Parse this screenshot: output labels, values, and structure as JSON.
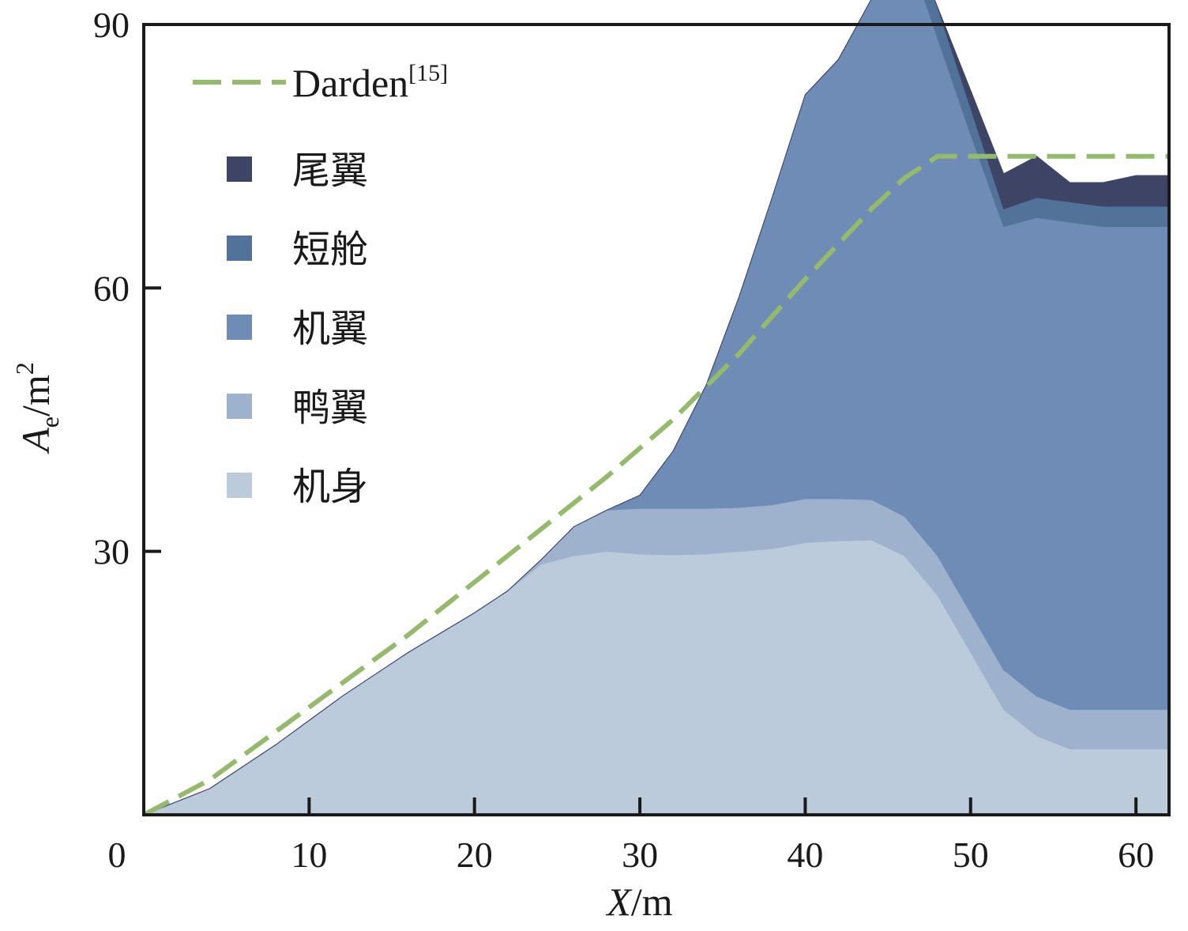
{
  "chart_data": {
    "type": "area",
    "stacked": true,
    "xlabel_var": "X",
    "xlabel_unit": "/m",
    "ylabel_var": "A",
    "ylabel_sub": "e",
    "ylabel_unit": "/m",
    "ylabel_sup": "2",
    "xlim": [
      0,
      62
    ],
    "ylim": [
      0,
      90
    ],
    "xticks": [
      0,
      10,
      20,
      30,
      40,
      50,
      60
    ],
    "xtick_labels": [
      "0",
      "10",
      "20",
      "30",
      "40",
      "50",
      "60"
    ],
    "yticks": [
      30,
      60,
      90
    ],
    "ytick_labels": [
      "30",
      "60",
      "90"
    ],
    "grid": false,
    "legend_position": "top-left",
    "x": [
      0,
      4,
      8,
      12,
      16,
      20,
      22,
      24,
      26,
      28,
      30,
      32,
      34,
      36,
      38,
      40,
      42,
      44,
      46,
      48,
      50,
      52,
      54,
      56,
      58,
      60,
      62
    ],
    "series": [
      {
        "name": "机身",
        "color": "#bccbdc",
        "values": [
          0,
          3,
          8,
          13.5,
          18.5,
          23,
          25.5,
          28.5,
          29.5,
          30,
          29.7,
          29.6,
          29.7,
          30,
          30.3,
          31,
          31.2,
          31.3,
          29.5,
          25,
          18.5,
          12,
          9,
          7.5,
          7.5,
          7.5,
          7.5
        ]
      },
      {
        "name": "鸭翼",
        "color": "#9fb2cd",
        "values": [
          0,
          0,
          0,
          0,
          0,
          0,
          0,
          0.5,
          3.3,
          4.7,
          5.2,
          5.3,
          5.2,
          5,
          5,
          5,
          4.8,
          4.6,
          4.5,
          4.5,
          4.5,
          4.5,
          4.5,
          4.5,
          4.5,
          4.5,
          4.5
        ]
      },
      {
        "name": "机翼",
        "color": "#6e8cb5",
        "values": [
          0,
          0,
          0,
          0,
          0,
          0,
          0,
          0,
          0,
          0,
          1.5,
          6.5,
          14,
          24,
          35,
          46,
          50,
          57,
          65.5,
          59,
          54.5,
          50.5,
          54.5,
          55.5,
          55,
          55,
          55
        ]
      },
      {
        "name": "短舱",
        "color": "#53729a",
        "values": [
          0,
          0,
          0,
          0,
          0,
          0,
          0,
          0,
          0,
          0,
          0,
          0,
          0,
          0,
          0,
          0,
          0,
          0,
          2,
          3.5,
          3,
          2,
          2.3,
          2.3,
          2.3,
          2.3,
          2.3
        ]
      },
      {
        "name": "尾翼",
        "color": "#3e4466",
        "values": [
          0,
          0,
          0,
          0,
          0,
          0,
          0,
          0,
          0,
          0,
          0,
          0,
          0,
          0,
          0,
          0,
          0,
          0,
          0,
          0,
          2,
          4,
          4.7,
          2.2,
          2.7,
          3.5,
          3.5
        ]
      }
    ],
    "reference_line": {
      "name": "Darden",
      "name_sup": "[15]",
      "color": "#95ba6c",
      "style": "dashed",
      "x": [
        0,
        4,
        8,
        12,
        16,
        20,
        24,
        28,
        32,
        36,
        40,
        44,
        46,
        48,
        50,
        52,
        56,
        60,
        62
      ],
      "values": [
        0,
        4,
        9.5,
        15,
        20.5,
        26.5,
        32.5,
        38.5,
        45,
        52.5,
        61,
        69,
        72.5,
        75,
        75,
        75,
        75,
        75,
        75
      ]
    }
  }
}
